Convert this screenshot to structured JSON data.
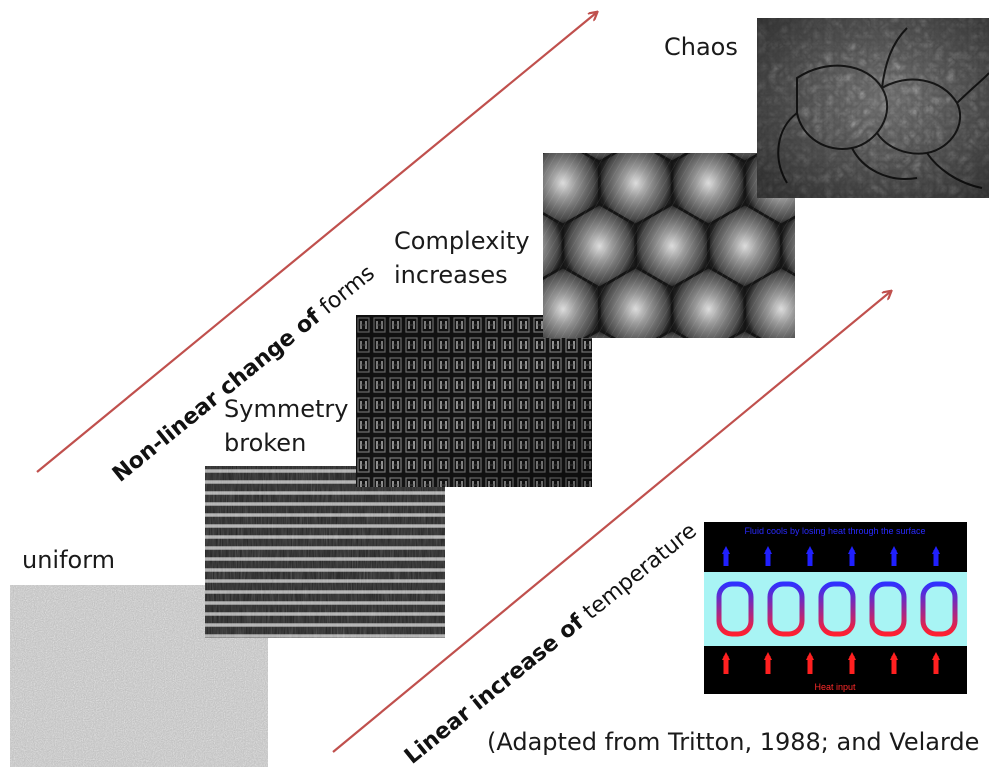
{
  "stages": {
    "uniform": "uniform",
    "symmetry_line1": "Symmetry",
    "symmetry_line2": "broken",
    "complexity_line1": "Complexity",
    "complexity_line2": "increases",
    "chaos": "Chaos"
  },
  "arrows": {
    "upper_bold": "Non-linear change of",
    "upper_plain": "forms",
    "lower_bold": "Linear increase of",
    "lower_plain": "temperature",
    "color": "#c0504d"
  },
  "convection_diagram": {
    "top_caption": "Fluid cools by losing heat through the surface",
    "bottom_caption": "Heat input",
    "cold_color": "#1a1aff",
    "hot_color": "#ff1a1a",
    "fluid_color": "#a8f4f4"
  },
  "citation": "(Adapted from Tritton, 1988; and Velarde"
}
